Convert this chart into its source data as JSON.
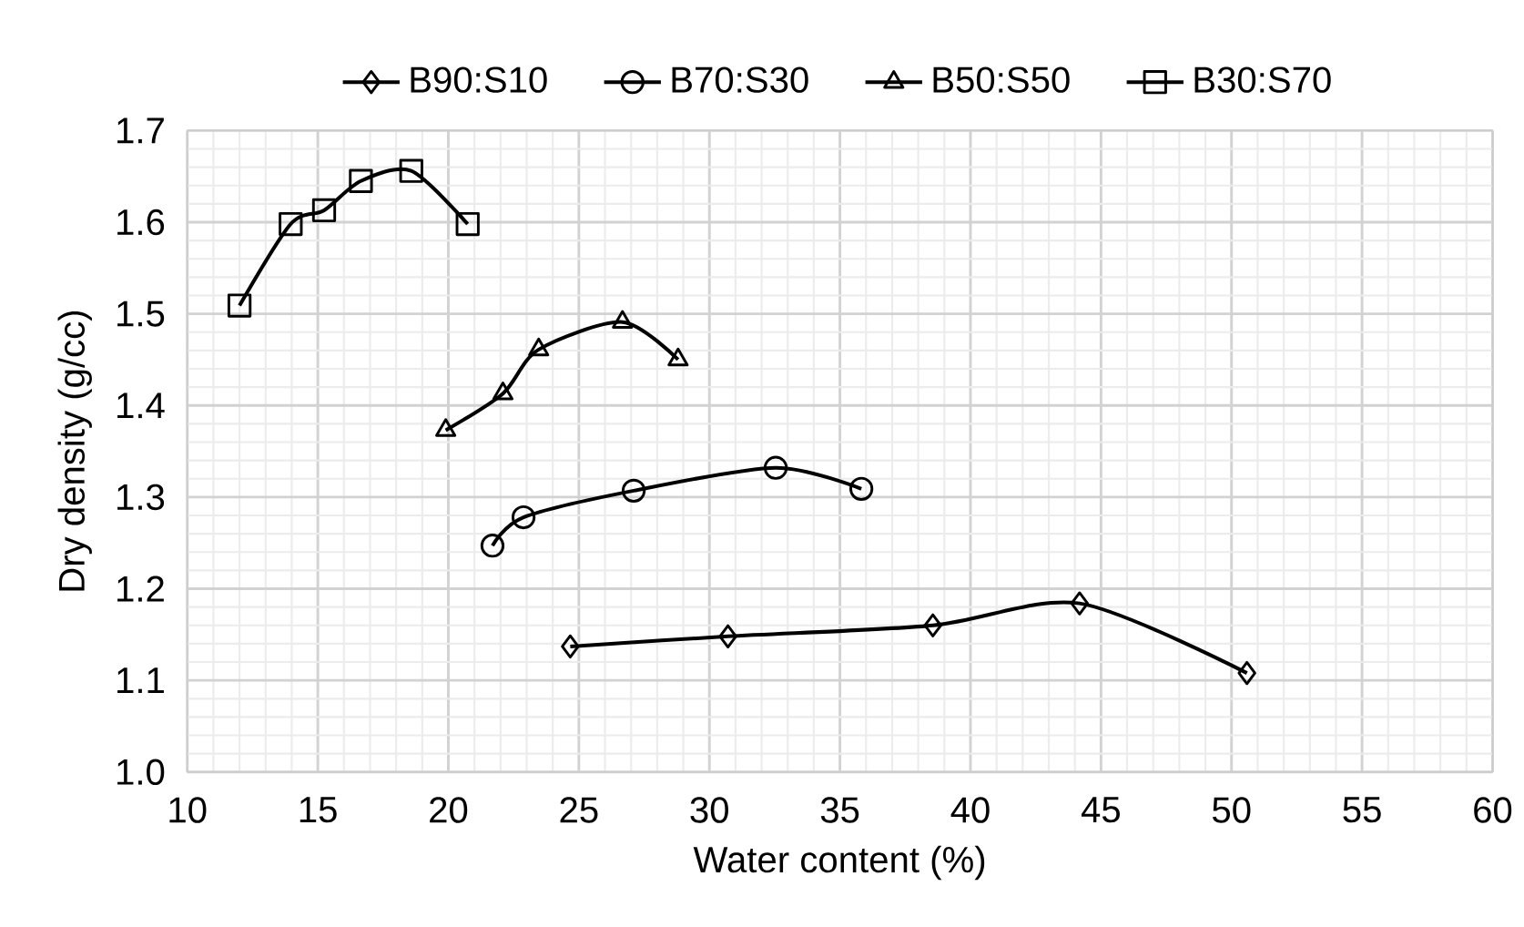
{
  "chart_data": {
    "type": "line",
    "xlabel": "Water content (%)",
    "ylabel": "Dry density (g/cc)",
    "xlim": [
      10,
      60
    ],
    "xticks": [
      10,
      15,
      20,
      25,
      30,
      35,
      40,
      45,
      50,
      55,
      60
    ],
    "ylim": [
      1.0,
      1.7
    ],
    "yticks": [
      {
        "value": 1.0,
        "label": "1.0"
      },
      1.1,
      1.2,
      1.3,
      1.4,
      1.5,
      1.6,
      1.7
    ],
    "grid": true,
    "legend": "top",
    "series": [
      {
        "name": "B90:S10",
        "color": "#000000",
        "marker": "diamond",
        "x": [
          24.67,
          30.71,
          38.56,
          44.18,
          50.59
        ],
        "values": [
          1.137,
          1.148,
          1.16,
          1.184,
          1.108
        ]
      },
      {
        "name": "B70:S30",
        "color": "#000000",
        "marker": "circle",
        "x": [
          21.69,
          22.88,
          27.1,
          32.54,
          35.82
        ],
        "values": [
          1.247,
          1.278,
          1.307,
          1.332,
          1.309
        ]
      },
      {
        "name": "B50:S50",
        "color": "#000000",
        "marker": "triangle",
        "x": [
          19.9,
          22.09,
          23.46,
          26.67,
          28.8
        ],
        "values": [
          1.373,
          1.413,
          1.461,
          1.491,
          1.45
        ]
      },
      {
        "name": "B30:S70",
        "color": "#000000",
        "marker": "square",
        "x": [
          12.0,
          13.96,
          15.24,
          16.65,
          18.58,
          20.74
        ],
        "values": [
          1.509,
          1.598,
          1.613,
          1.645,
          1.656,
          1.598
        ]
      }
    ]
  }
}
